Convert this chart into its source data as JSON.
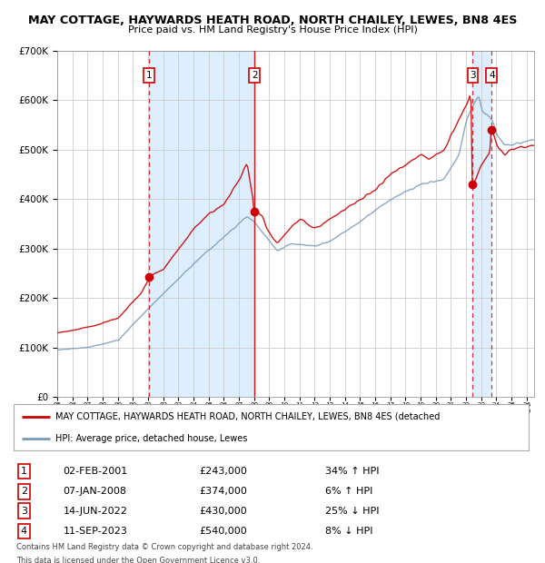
{
  "title": "MAY COTTAGE, HAYWARDS HEATH ROAD, NORTH CHAILEY, LEWES, BN8 4ES",
  "subtitle": "Price paid vs. HM Land Registry's House Price Index (HPI)",
  "legend_line1": "MAY COTTAGE, HAYWARDS HEATH ROAD, NORTH CHAILEY, LEWES, BN8 4ES (detached",
  "legend_line2": "HPI: Average price, detached house, Lewes",
  "footer1": "Contains HM Land Registry data © Crown copyright and database right 2024.",
  "footer2": "This data is licensed under the Open Government Licence v3.0.",
  "transactions": [
    {
      "num": 1,
      "date": "02-FEB-2001",
      "price": 243000,
      "pct": "34%",
      "dir": "↑"
    },
    {
      "num": 2,
      "date": "07-JAN-2008",
      "price": 374000,
      "pct": "6%",
      "dir": "↑"
    },
    {
      "num": 3,
      "date": "14-JUN-2022",
      "price": 430000,
      "pct": "25%",
      "dir": "↓"
    },
    {
      "num": 4,
      "date": "11-SEP-2023",
      "price": 540000,
      "pct": "8%",
      "dir": "↓"
    }
  ],
  "transaction_years": [
    2001.08,
    2008.03,
    2022.45,
    2023.7
  ],
  "transaction_prices": [
    243000,
    374000,
    430000,
    540000
  ],
  "ylim": [
    0,
    700000
  ],
  "xlim_start": 1995.0,
  "xlim_end": 2026.5,
  "red_color": "#cc0000",
  "blue_color": "#7799bb",
  "shade_color_blue": "#ddeeff",
  "shade_color_gray": "#e8e8e8",
  "grid_color": "#cccccc",
  "background_color": "#ffffff"
}
